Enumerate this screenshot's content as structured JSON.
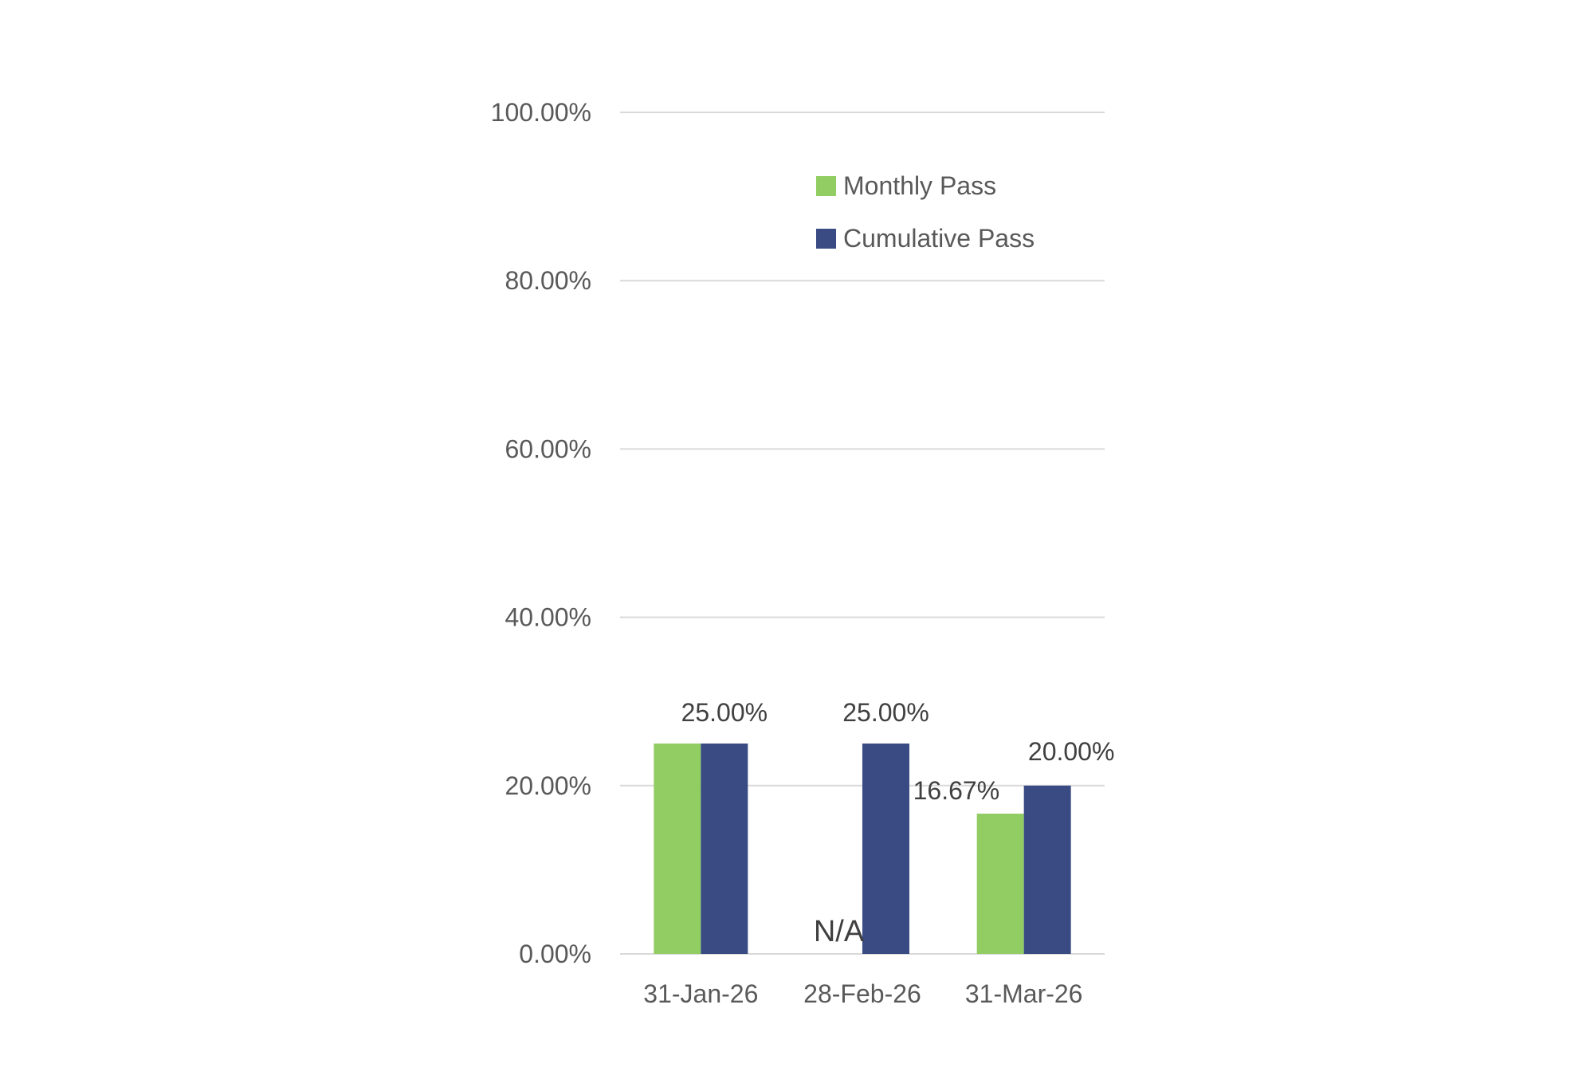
{
  "chart_data": {
    "type": "bar",
    "categories": [
      "31-Jan-26",
      "28-Feb-26",
      "31-Mar-26"
    ],
    "series": [
      {
        "name": "Monthly Pass",
        "color": "#92cd64",
        "values": [
          0.25,
          null,
          0.1667
        ],
        "labels": [
          "",
          "N/A",
          "16.67%"
        ]
      },
      {
        "name": "Cumulative Pass",
        "color": "#3a4b84",
        "values": [
          0.25,
          0.25,
          0.2
        ],
        "labels": [
          "25.00%",
          "25.00%",
          "20.00%"
        ]
      }
    ],
    "ylim": [
      0,
      1
    ],
    "yticks": [
      0,
      0.2,
      0.4,
      0.6,
      0.8,
      1.0
    ],
    "ytick_labels": [
      "0.00%",
      "20.00%",
      "40.00%",
      "60.00%",
      "80.00%",
      "100.00%"
    ],
    "grid": true,
    "gridline_color": "#d9d9d9",
    "legend_position": "top-right-inside"
  }
}
